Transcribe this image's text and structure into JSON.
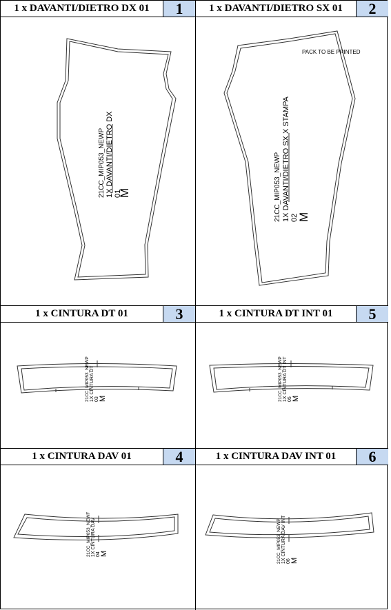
{
  "panels": [
    {
      "title": "1 x DAVANTI/DIETRO DX 01",
      "number": "1",
      "code": "21CC_MIP053_NEWP",
      "piece": "1X DAVANTI/DIETRO DX",
      "qty": "01",
      "size": "M"
    },
    {
      "title": "1 x DAVANTI/DIETRO SX 01",
      "number": "2",
      "code": "21CC_MIP053_NEWP",
      "piece": "1X DAVANTI/DIETRO SX X STAMPA",
      "qty": "02",
      "size": "M",
      "note": "PACK TO BE PRINTED"
    },
    {
      "title": "1 x CINTURA DT 01",
      "number": "3",
      "code": "21CC_MIP053_NEWP",
      "piece": "1X CINTURA DT",
      "qty": "03",
      "size": "M"
    },
    {
      "title": "1 x CINTURA DT INT 01",
      "number": "5",
      "code": "21CC_MIP053_NEWP",
      "piece": "1X CINTURA DT INT",
      "qty": "05",
      "size": "M"
    },
    {
      "title": "1 x CINTURA DAV 01",
      "number": "4",
      "code": "21CC_MIP053_NEWF",
      "piece": "1X CINTURA DAV",
      "qty": "04",
      "size": "M"
    },
    {
      "title": "1 x CINTURA DAV INT 01",
      "number": "6",
      "code": "21CC_MIP053_NEWP",
      "piece": "1X CINTURA DAV INT",
      "qty": "06",
      "size": "M"
    }
  ]
}
